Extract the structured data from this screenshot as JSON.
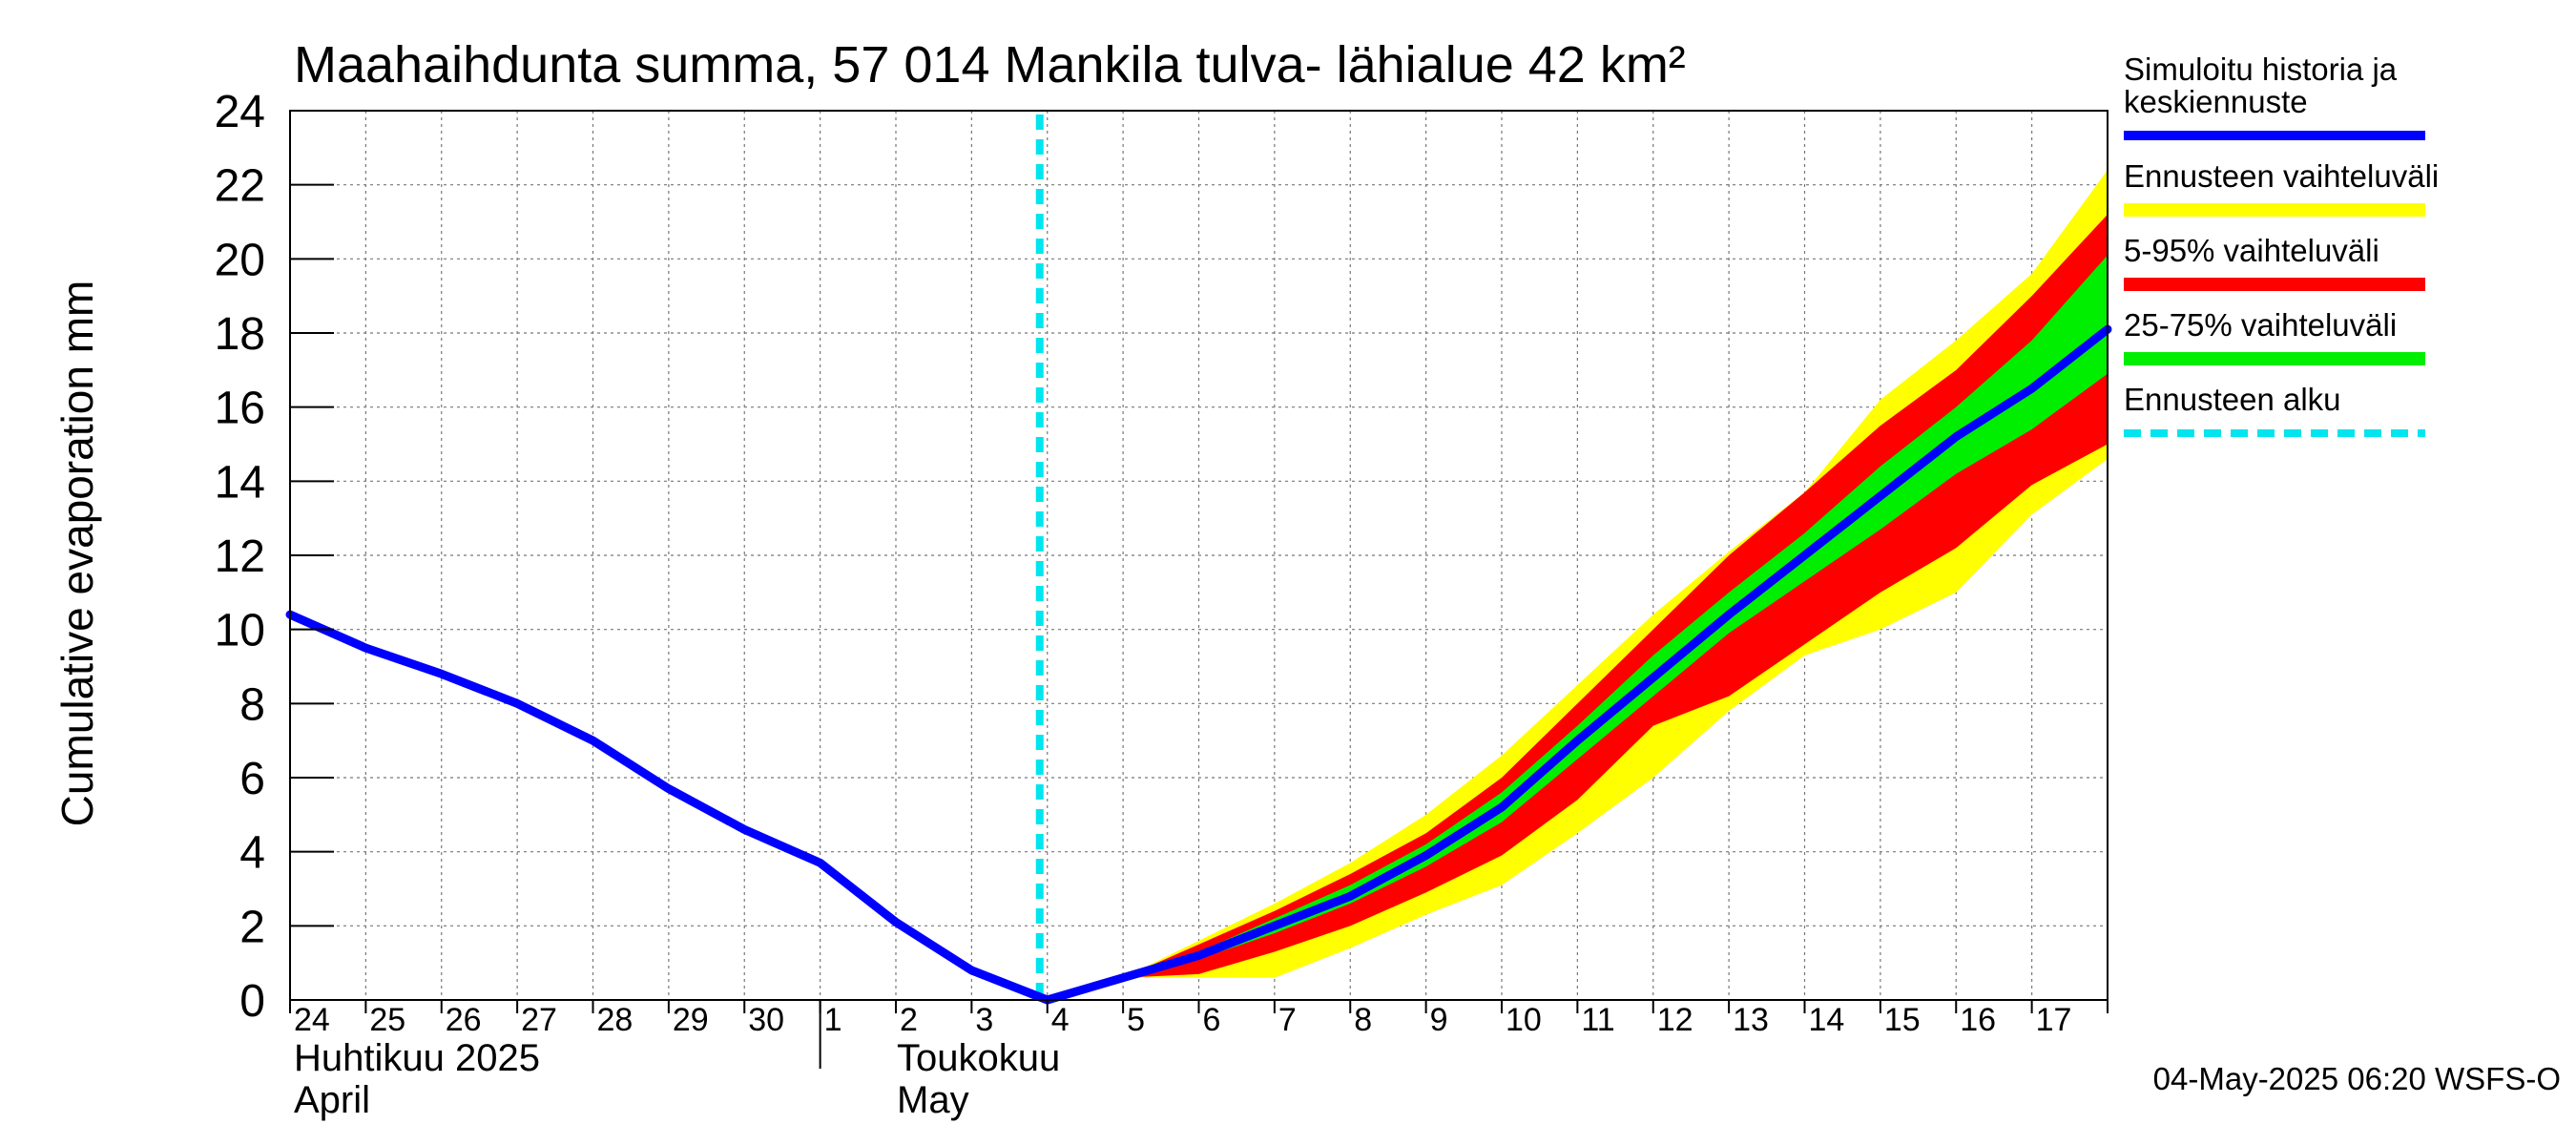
{
  "chart_data": {
    "type": "area",
    "title": "Maahaihdunta summa, 57 014 Mankila tulva- lähialue 42 km²",
    "ylabel": "Cumulative evaporation   mm",
    "ylim": [
      0,
      24
    ],
    "yticks": [
      0,
      2,
      4,
      6,
      8,
      10,
      12,
      14,
      16,
      18,
      20,
      22,
      24
    ],
    "grid": true,
    "legend_position": "right",
    "x_tick_labels": [
      "24",
      "25",
      "26",
      "27",
      "28",
      "29",
      "30",
      "1",
      "2",
      "3",
      "4",
      "5",
      "6",
      "7",
      "8",
      "9",
      "10",
      "11",
      "12",
      "13",
      "14",
      "15",
      "16",
      "17"
    ],
    "month_labels": [
      {
        "fi": "Huhtikuu  2025",
        "en": "April"
      },
      {
        "fi": "Toukokuu",
        "en": "May"
      }
    ],
    "forecast_start": "2025-05-04",
    "timestamp": "04-May-2025 06:20 WSFS-O",
    "series": [
      {
        "name": "Simuloitu historia ja keskiennuste",
        "kind": "line",
        "color": "#0000ff",
        "points": [
          [
            "2025-04-24",
            10.4
          ],
          [
            "2025-04-25",
            9.5
          ],
          [
            "2025-04-26",
            8.8
          ],
          [
            "2025-04-27",
            8.0
          ],
          [
            "2025-04-28",
            7.0
          ],
          [
            "2025-04-29",
            5.7
          ],
          [
            "2025-04-30",
            4.6
          ],
          [
            "2025-05-01",
            3.7
          ],
          [
            "2025-05-02",
            2.1
          ],
          [
            "2025-05-03",
            0.8
          ],
          [
            "2025-05-04",
            0.0
          ],
          [
            "2025-05-05",
            0.6
          ],
          [
            "2025-05-06",
            1.2
          ],
          [
            "2025-05-07",
            2.0
          ],
          [
            "2025-05-08",
            2.8
          ],
          [
            "2025-05-09",
            3.9
          ],
          [
            "2025-05-10",
            5.2
          ],
          [
            "2025-05-11",
            7.0
          ],
          [
            "2025-05-12",
            8.7
          ],
          [
            "2025-05-13",
            10.4
          ],
          [
            "2025-05-14",
            12.0
          ],
          [
            "2025-05-15",
            13.6
          ],
          [
            "2025-05-16",
            15.2
          ],
          [
            "2025-05-17",
            16.5
          ],
          [
            "2025-05-18",
            18.1
          ]
        ]
      },
      {
        "name": "Ennusteen vaihteluväli",
        "kind": "band",
        "color": "#ffff00",
        "x": [
          "2025-05-04",
          "2025-05-05",
          "2025-05-06",
          "2025-05-07",
          "2025-05-08",
          "2025-05-09",
          "2025-05-10",
          "2025-05-11",
          "2025-05-12",
          "2025-05-13",
          "2025-05-14",
          "2025-05-15",
          "2025-05-16",
          "2025-05-17",
          "2025-05-18"
        ],
        "low": [
          0.0,
          0.6,
          0.6,
          0.6,
          1.4,
          2.3,
          3.1,
          4.5,
          6.0,
          7.8,
          9.3,
          10.0,
          11.0,
          13.1,
          14.6
        ],
        "high": [
          0.0,
          0.6,
          1.6,
          2.6,
          3.7,
          5.0,
          6.6,
          8.5,
          10.4,
          12.1,
          13.7,
          16.2,
          17.8,
          19.6,
          22.4
        ]
      },
      {
        "name": "5-95% vaihteluväli",
        "kind": "band",
        "color": "#ff0000",
        "x": [
          "2025-05-04",
          "2025-05-05",
          "2025-05-06",
          "2025-05-07",
          "2025-05-08",
          "2025-05-09",
          "2025-05-10",
          "2025-05-11",
          "2025-05-12",
          "2025-05-13",
          "2025-05-14",
          "2025-05-15",
          "2025-05-16",
          "2025-05-17",
          "2025-05-18"
        ],
        "low": [
          0.0,
          0.6,
          0.7,
          1.3,
          2.0,
          2.9,
          3.9,
          5.4,
          7.4,
          8.2,
          9.6,
          11.0,
          12.2,
          13.9,
          15.0
        ],
        "high": [
          0.0,
          0.6,
          1.5,
          2.4,
          3.4,
          4.5,
          6.0,
          8.0,
          10.0,
          12.0,
          13.7,
          15.5,
          17.0,
          19.0,
          21.2
        ]
      },
      {
        "name": "25-75% vaihteluväli",
        "kind": "band",
        "color": "#00ee00",
        "x": [
          "2025-05-04",
          "2025-05-05",
          "2025-05-06",
          "2025-05-07",
          "2025-05-08",
          "2025-05-09",
          "2025-05-10",
          "2025-05-11",
          "2025-05-12",
          "2025-05-13",
          "2025-05-14",
          "2025-05-15",
          "2025-05-16",
          "2025-05-17",
          "2025-05-18"
        ],
        "low": [
          0.0,
          0.6,
          1.1,
          1.8,
          2.6,
          3.6,
          4.8,
          6.5,
          8.2,
          9.9,
          11.3,
          12.7,
          14.2,
          15.4,
          16.9
        ],
        "high": [
          0.0,
          0.6,
          1.3,
          2.2,
          3.1,
          4.2,
          5.6,
          7.4,
          9.3,
          11.0,
          12.6,
          14.4,
          16.0,
          17.8,
          20.1
        ]
      },
      {
        "name": "Ennusteen alku",
        "kind": "vline",
        "color": "#00e5ee",
        "dash": true
      }
    ]
  }
}
